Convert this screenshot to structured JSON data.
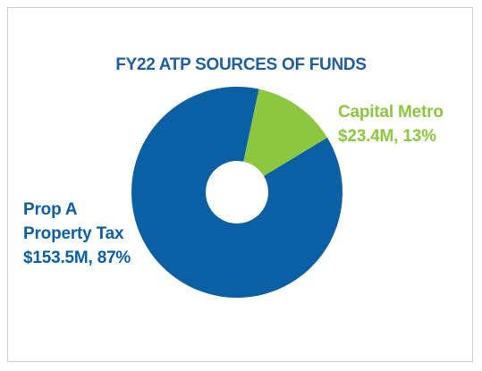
{
  "chart_data": {
    "type": "pie",
    "donut": true,
    "title": "FY22 ATP SOURCES OF FUNDS",
    "categories": [
      "Prop A Property Tax",
      "Capital Metro"
    ],
    "values": [
      87,
      13
    ],
    "value_labels": [
      "$153.5M, 87%",
      "$23.4M, 13%"
    ],
    "colors": [
      "#0b5fa5",
      "#8dc63f"
    ]
  }
}
